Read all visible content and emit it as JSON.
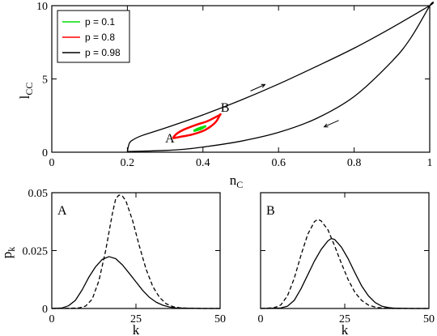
{
  "chart_data": [
    {
      "type": "line",
      "id": "top",
      "xlabel_main": "n",
      "xlabel_sub": "C",
      "ylabel_main": "l",
      "ylabel_sub": "CC",
      "xlim": [
        0,
        1
      ],
      "ylim": [
        0,
        10
      ],
      "xticks": [
        0,
        0.2,
        0.4,
        0.6,
        0.8,
        1
      ],
      "xtick_labels": [
        "0",
        "0.2",
        "0.4",
        "0.6",
        "0.8",
        "1"
      ],
      "yticks": [
        0,
        5,
        10
      ],
      "ytick_labels": [
        "0",
        "5",
        "10"
      ],
      "legend_position": "top-left",
      "series": [
        {
          "name": "p = 0.1",
          "color": "#00dd00",
          "upper": [
            [
              0.375,
              1.45
            ],
            [
              0.385,
              1.58
            ],
            [
              0.395,
              1.68
            ],
            [
              0.405,
              1.75
            ]
          ],
          "lower": [
            [
              0.375,
              1.45
            ],
            [
              0.385,
              1.52
            ],
            [
              0.395,
              1.6
            ],
            [
              0.405,
              1.75
            ]
          ]
        },
        {
          "name": "p = 0.8",
          "color": "#ff0000",
          "upper": [
            [
              0.32,
              0.95
            ],
            [
              0.33,
              1.25
            ],
            [
              0.35,
              1.55
            ],
            [
              0.38,
              1.85
            ],
            [
              0.41,
              2.1
            ],
            [
              0.43,
              2.35
            ],
            [
              0.445,
              2.55
            ]
          ],
          "lower": [
            [
              0.32,
              0.95
            ],
            [
              0.34,
              1.05
            ],
            [
              0.37,
              1.2
            ],
            [
              0.4,
              1.45
            ],
            [
              0.42,
              1.75
            ],
            [
              0.435,
              2.1
            ],
            [
              0.445,
              2.55
            ]
          ]
        },
        {
          "name": "p = 0.98",
          "color": "#000000",
          "upper": [
            [
              0.2,
              0.05
            ],
            [
              0.205,
              0.6
            ],
            [
              0.215,
              0.85
            ],
            [
              0.24,
              1.15
            ],
            [
              0.3,
              1.65
            ],
            [
              0.4,
              2.55
            ],
            [
              0.5,
              3.55
            ],
            [
              0.6,
              4.65
            ],
            [
              0.7,
              5.85
            ],
            [
              0.8,
              7.1
            ],
            [
              0.9,
              8.5
            ],
            [
              1.0,
              10.0
            ]
          ],
          "lower": [
            [
              0.2,
              0.05
            ],
            [
              0.25,
              0.08
            ],
            [
              0.3,
              0.12
            ],
            [
              0.35,
              0.2
            ],
            [
              0.4,
              0.35
            ],
            [
              0.5,
              0.75
            ],
            [
              0.6,
              1.35
            ],
            [
              0.7,
              2.3
            ],
            [
              0.8,
              3.8
            ],
            [
              0.9,
              6.2
            ],
            [
              0.95,
              7.8
            ],
            [
              1.0,
              10.0
            ]
          ]
        }
      ],
      "annotations": [
        {
          "text": "A",
          "x": 0.3,
          "y": 0.65
        },
        {
          "text": "B",
          "x": 0.447,
          "y": 2.75
        }
      ],
      "arrows": [
        {
          "x": 0.545,
          "y": 4.4,
          "direction": "up-right"
        },
        {
          "x": 0.74,
          "y": 1.95,
          "direction": "down-left"
        }
      ]
    },
    {
      "type": "line",
      "id": "bottom-left",
      "panel_label": "A",
      "xlabel": "k",
      "ylabel_main": "p",
      "ylabel_sub": "k",
      "xlim": [
        0,
        50
      ],
      "ylim": [
        0,
        0.05
      ],
      "xticks": [
        0,
        25,
        50
      ],
      "xtick_labels": [
        "0",
        "25",
        "50"
      ],
      "yticks": [
        0,
        0.025,
        0.05
      ],
      "ytick_labels": [
        "0",
        "0.025",
        "0.05"
      ],
      "series": [
        {
          "style": "solid",
          "x": [
            0,
            3,
            5,
            7,
            9,
            11,
            13,
            15,
            17,
            19,
            21,
            23,
            25,
            27,
            29,
            31,
            33,
            35,
            37,
            40,
            45,
            50
          ],
          "y": [
            0,
            0.0002,
            0.0012,
            0.0035,
            0.008,
            0.0135,
            0.018,
            0.0212,
            0.0224,
            0.0215,
            0.0188,
            0.0152,
            0.0115,
            0.0078,
            0.0048,
            0.0027,
            0.0014,
            0.0006,
            0.0002,
            0.0001,
            0,
            0
          ]
        },
        {
          "style": "dashed",
          "x": [
            0,
            8,
            10,
            12,
            14,
            16,
            18,
            19,
            20,
            21,
            22,
            24,
            26,
            28,
            30,
            32,
            34,
            36,
            38,
            41,
            45,
            50
          ],
          "y": [
            0,
            0.0002,
            0.001,
            0.004,
            0.012,
            0.025,
            0.041,
            0.0475,
            0.049,
            0.0485,
            0.0465,
            0.038,
            0.027,
            0.017,
            0.0095,
            0.0048,
            0.002,
            0.0008,
            0.0003,
            0.0001,
            0,
            0
          ]
        }
      ]
    },
    {
      "type": "line",
      "id": "bottom-right",
      "panel_label": "B",
      "xlabel": "k",
      "xlim": [
        0,
        50
      ],
      "ylim": [
        0,
        0.05
      ],
      "xticks": [
        0,
        25,
        50
      ],
      "xtick_labels": [
        "0",
        "25",
        "50"
      ],
      "yticks": [
        0,
        0.025,
        0.05
      ],
      "series": [
        {
          "style": "solid",
          "x": [
            0,
            6,
            8,
            10,
            12,
            14,
            16,
            18,
            20,
            21,
            22,
            24,
            26,
            28,
            30,
            32,
            34,
            36,
            38,
            40,
            45,
            50
          ],
          "y": [
            0,
            0.0002,
            0.001,
            0.0035,
            0.0085,
            0.0145,
            0.0205,
            0.0255,
            0.0292,
            0.0302,
            0.0298,
            0.0265,
            0.0215,
            0.0155,
            0.0098,
            0.0055,
            0.0026,
            0.001,
            0.0004,
            0.0001,
            0,
            0
          ]
        },
        {
          "style": "dashed",
          "x": [
            0,
            4,
            6,
            8,
            10,
            12,
            14,
            16,
            17,
            18,
            20,
            22,
            24,
            26,
            28,
            30,
            32,
            34,
            36,
            40,
            45,
            50
          ],
          "y": [
            0,
            0.0003,
            0.0015,
            0.0055,
            0.013,
            0.023,
            0.032,
            0.0375,
            0.0385,
            0.0378,
            0.034,
            0.027,
            0.0195,
            0.0125,
            0.007,
            0.0035,
            0.0015,
            0.0006,
            0.0002,
            0,
            0,
            0
          ]
        }
      ]
    }
  ]
}
